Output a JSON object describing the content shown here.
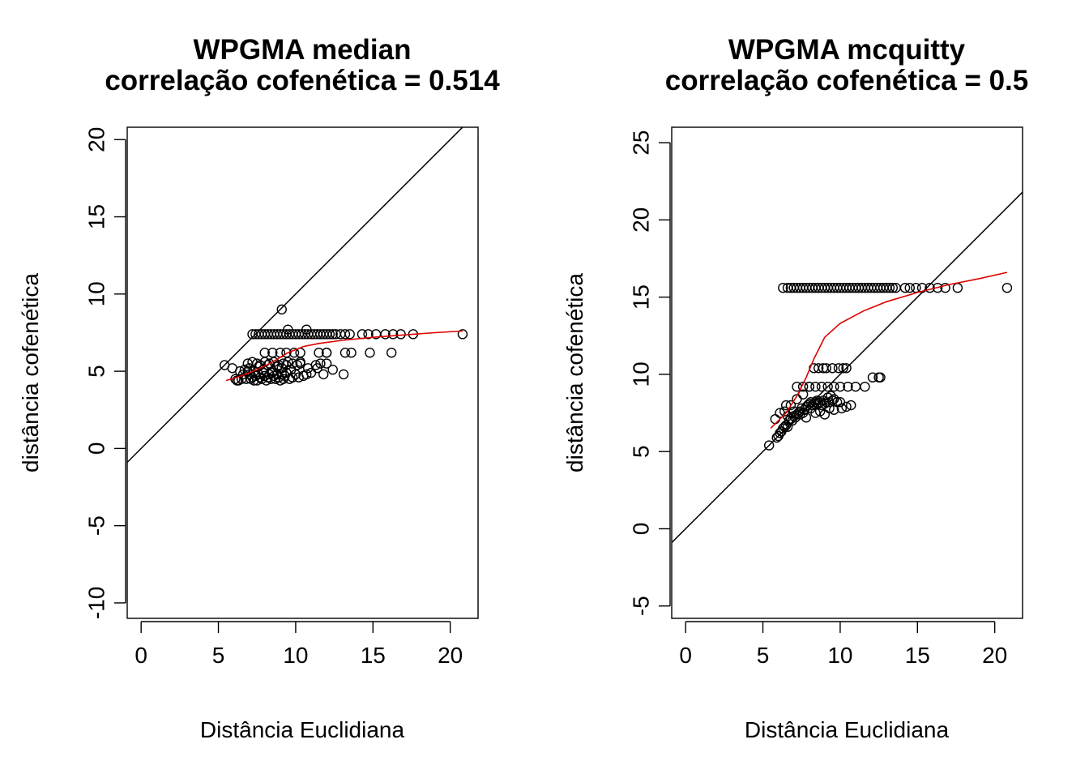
{
  "chart_data": [
    {
      "type": "scatter",
      "title": "WPGMA median",
      "subtitle": "correlação cofenética = 0.514",
      "xlabel": "Distância Euclidiana",
      "ylabel": "distância cofenética",
      "xlim": [
        -0.9,
        21.8
      ],
      "ylim": [
        -11,
        20.8
      ],
      "xticks": [
        0,
        5,
        10,
        15,
        20
      ],
      "yticks": [
        -10,
        -5,
        0,
        5,
        10,
        15,
        20
      ],
      "grid": false,
      "reference_line": {
        "intercept": 0,
        "slope": 1,
        "color": "#000000"
      },
      "smooth": {
        "color": "#dd0000",
        "x": [
          5.5,
          6.5,
          7.5,
          8.5,
          9.5,
          10.5,
          11.5,
          13,
          15,
          17,
          19,
          20.8
        ],
        "y": [
          4.4,
          4.7,
          5.1,
          5.6,
          6.2,
          6.6,
          6.8,
          7.0,
          7.2,
          7.35,
          7.5,
          7.6
        ]
      },
      "series": [
        {
          "x": [
            5.4,
            5.9,
            6.1,
            6.2,
            6.3,
            6.5,
            6.6,
            6.8,
            6.9,
            7.0,
            7.1,
            7.2,
            7.3,
            7.4,
            7.5,
            7.6,
            7.7,
            7.8,
            7.9,
            8.0,
            8.1,
            8.2,
            8.3,
            8.4,
            8.5,
            8.6,
            8.7,
            8.8,
            8.9,
            9.0,
            9.1,
            9.2,
            9.3,
            9.4,
            9.6,
            9.8,
            10.0,
            10.2,
            10.5,
            10.7,
            11.0,
            11.4,
            11.8,
            12.0,
            12.4,
            13.1,
            6.4,
            6.7,
            7.0,
            7.3,
            7.6,
            7.9,
            8.2,
            8.5,
            8.8,
            9.1,
            9.4,
            9.7,
            10.3,
            10.8,
            11.3,
            6.9,
            7.2,
            7.5,
            7.7,
            8.0,
            8.3,
            8.6,
            8.9,
            9.2,
            9.5,
            9.8,
            10.1,
            10.3,
            11.6,
            12.0,
            13.2,
            13.6,
            14.8,
            16.2,
            8.0,
            8.5,
            9.0,
            9.4,
            9.9,
            10.3,
            11.5,
            12.0,
            7.2,
            7.4,
            7.6,
            7.8,
            8.0,
            8.2,
            8.4,
            8.6,
            8.8,
            9.0,
            9.2,
            9.4,
            9.6,
            9.8,
            10.0,
            10.2,
            10.4,
            10.6,
            10.8,
            11.0,
            11.2,
            11.4,
            11.6,
            11.8,
            12.0,
            12.2,
            12.4,
            12.6,
            12.9,
            13.2,
            13.5,
            14.3,
            14.7,
            15.2,
            15.8,
            16.3,
            16.8,
            17.6,
            20.8,
            9.5,
            10.7,
            9.1
          ],
          "y": [
            5.4,
            5.2,
            4.5,
            4.4,
            4.4,
            4.5,
            4.8,
            4.5,
            5.0,
            4.8,
            4.5,
            4.6,
            4.4,
            4.7,
            4.4,
            4.8,
            4.6,
            4.5,
            4.9,
            4.7,
            4.4,
            4.6,
            4.8,
            4.5,
            4.9,
            4.7,
            4.5,
            4.8,
            4.6,
            4.4,
            4.8,
            4.5,
            4.7,
            4.9,
            4.5,
            4.6,
            4.8,
            4.6,
            4.7,
            4.8,
            4.9,
            5.2,
            4.8,
            5.5,
            5.1,
            4.8,
            5.0,
            5.1,
            5.2,
            5.0,
            5.3,
            5.1,
            5.4,
            5.0,
            5.3,
            5.2,
            5.4,
            5.1,
            5.5,
            5.2,
            5.4,
            5.5,
            5.6,
            5.5,
            5.4,
            5.6,
            5.5,
            5.6,
            5.4,
            5.5,
            5.6,
            5.5,
            5.4,
            5.6,
            5.5,
            6.2,
            6.2,
            6.2,
            6.2,
            6.2,
            6.2,
            6.2,
            6.2,
            6.2,
            6.2,
            6.2,
            6.2,
            6.2,
            7.4,
            7.4,
            7.4,
            7.4,
            7.4,
            7.4,
            7.4,
            7.4,
            7.4,
            7.4,
            7.4,
            7.4,
            7.4,
            7.4,
            7.4,
            7.4,
            7.4,
            7.4,
            7.4,
            7.4,
            7.4,
            7.4,
            7.4,
            7.4,
            7.4,
            7.4,
            7.4,
            7.4,
            7.4,
            7.4,
            7.4,
            7.4,
            7.4,
            7.4,
            7.4,
            7.4,
            7.4,
            7.4,
            7.4,
            7.7,
            7.7,
            9.0
          ]
        }
      ]
    },
    {
      "type": "scatter",
      "title": "WPGMA mcquitty",
      "subtitle": "correlação cofenética = 0.5",
      "xlabel": "Distância Euclidiana",
      "ylabel": "distância cofenética",
      "xlim": [
        -0.9,
        21.8
      ],
      "ylim": [
        -5.8,
        26.0
      ],
      "xticks": [
        0,
        5,
        10,
        15,
        20
      ],
      "yticks": [
        -5,
        0,
        5,
        10,
        15,
        20,
        25
      ],
      "grid": false,
      "reference_line": {
        "intercept": 0,
        "slope": 1,
        "color": "#000000"
      },
      "smooth": {
        "color": "#dd0000",
        "x": [
          5.5,
          6.5,
          7.2,
          7.8,
          8.3,
          9.0,
          10.0,
          11.5,
          13.0,
          15.0,
          17.0,
          19.0,
          20.8
        ],
        "y": [
          6.5,
          7.5,
          8.6,
          9.8,
          11.0,
          12.4,
          13.3,
          14.1,
          14.7,
          15.3,
          15.8,
          16.2,
          16.6
        ]
      },
      "series": [
        {
          "x": [
            6.3,
            6.6,
            6.8,
            7.0,
            7.2,
            7.4,
            7.6,
            7.8,
            8.0,
            8.2,
            8.4,
            8.6,
            8.8,
            9.0,
            9.2,
            9.4,
            9.6,
            9.8,
            10.0,
            10.2,
            10.4,
            10.6,
            10.8,
            11.0,
            11.2,
            11.4,
            11.6,
            11.8,
            12.0,
            12.2,
            12.4,
            12.6,
            12.8,
            13.0,
            13.2,
            13.4,
            13.6,
            14.2,
            14.5,
            14.9,
            15.3,
            15.8,
            16.3,
            16.8,
            17.6,
            20.8,
            5.4,
            5.9,
            6.0,
            6.1,
            6.2,
            6.3,
            6.4,
            6.5,
            6.6,
            6.7,
            6.8,
            6.9,
            7.0,
            7.1,
            7.2,
            7.3,
            7.4,
            7.5,
            7.6,
            7.7,
            7.8,
            7.9,
            8.0,
            8.1,
            8.2,
            8.3,
            8.4,
            8.5,
            8.6,
            8.7,
            8.8,
            8.9,
            9.0,
            9.1,
            9.2,
            9.3,
            9.4,
            9.5,
            9.6,
            9.8,
            10.0,
            5.8,
            6.6,
            7.0,
            7.4,
            7.8,
            8.1,
            8.4,
            8.7,
            9.0,
            9.3,
            9.6,
            10.1,
            10.4,
            10.7,
            6.5,
            7.2,
            7.6,
            8.0,
            8.4,
            8.8,
            9.2,
            9.6,
            10.0,
            10.5,
            11.0,
            11.6,
            12.1,
            12.5,
            12.6,
            6.1,
            6.4,
            6.8,
            7.2,
            7.6,
            8.0,
            8.3,
            8.6,
            8.9,
            9.1,
            9.5,
            9.9,
            10.2,
            10.4
          ],
          "y": [
            15.6,
            15.6,
            15.6,
            15.6,
            15.6,
            15.6,
            15.6,
            15.6,
            15.6,
            15.6,
            15.6,
            15.6,
            15.6,
            15.6,
            15.6,
            15.6,
            15.6,
            15.6,
            15.6,
            15.6,
            15.6,
            15.6,
            15.6,
            15.6,
            15.6,
            15.6,
            15.6,
            15.6,
            15.6,
            15.6,
            15.6,
            15.6,
            15.6,
            15.6,
            15.6,
            15.6,
            15.6,
            15.6,
            15.6,
            15.6,
            15.6,
            15.6,
            15.6,
            15.6,
            15.6,
            15.6,
            5.4,
            5.9,
            6.0,
            6.2,
            6.3,
            6.5,
            6.6,
            6.7,
            6.6,
            7.0,
            7.1,
            7.0,
            7.3,
            7.2,
            7.4,
            7.5,
            7.6,
            7.8,
            7.5,
            7.7,
            7.9,
            8.0,
            8.1,
            8.2,
            8.0,
            8.1,
            8.2,
            8.3,
            8.1,
            8.2,
            8.0,
            8.3,
            8.1,
            8.2,
            8.5,
            8.2,
            8.6,
            8.3,
            8.4,
            8.2,
            8.2,
            7.1,
            7.3,
            7.6,
            7.4,
            7.2,
            7.8,
            7.5,
            7.6,
            7.4,
            7.8,
            7.7,
            7.8,
            7.9,
            8.0,
            8.0,
            9.2,
            9.2,
            9.2,
            9.2,
            9.2,
            9.2,
            9.2,
            9.2,
            9.2,
            9.2,
            9.2,
            9.8,
            9.8,
            9.8,
            7.5,
            7.6,
            8.0,
            8.4,
            8.7,
            9.2,
            10.4,
            10.4,
            10.4,
            10.4,
            10.4,
            10.4,
            10.4,
            10.4
          ]
        }
      ]
    }
  ],
  "colors": {
    "points": "#000000",
    "smooth": "#dd0000",
    "reference": "#000000",
    "axes": "#000000"
  }
}
